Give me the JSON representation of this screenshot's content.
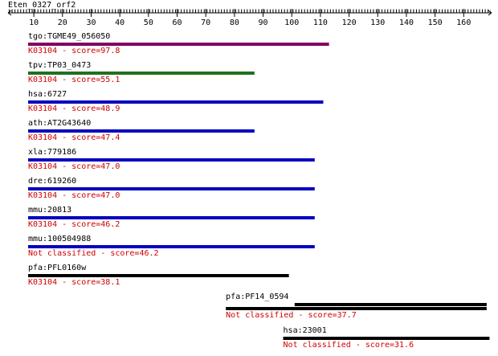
{
  "chart_data": {
    "type": "range",
    "title": "Eten_0327_orf2",
    "xlim": [
      1,
      170
    ],
    "xticks": [
      10,
      20,
      30,
      40,
      50,
      60,
      70,
      80,
      90,
      100,
      110,
      120,
      130,
      140,
      150,
      160
    ],
    "series": [
      {
        "name": "tgo:TGME49_056050",
        "note": "K03104 - score=97.8",
        "color": "#800060",
        "ranges": [
          [
            8,
            113
          ]
        ]
      },
      {
        "name": "tpv:TP03_0473",
        "note": "K03104 - score=55.1",
        "color": "#207020",
        "ranges": [
          [
            8,
            87
          ]
        ]
      },
      {
        "name": "hsa:6727",
        "note": "K03104 - score=48.9",
        "color": "#0000c0",
        "ranges": [
          [
            8,
            111
          ]
        ]
      },
      {
        "name": "ath:AT2G43640",
        "note": "K03104 - score=47.4",
        "color": "#0000c0",
        "ranges": [
          [
            8,
            87
          ]
        ]
      },
      {
        "name": "xla:779186",
        "note": "K03104 - score=47.0",
        "color": "#0000c0",
        "ranges": [
          [
            8,
            108
          ]
        ]
      },
      {
        "name": "dre:619260",
        "note": "K03104 - score=47.0",
        "color": "#0000c0",
        "ranges": [
          [
            8,
            108
          ]
        ]
      },
      {
        "name": "mmu:20813",
        "note": "K03104 - score=46.2",
        "color": "#0000c0",
        "ranges": [
          [
            8,
            108
          ]
        ]
      },
      {
        "name": "mmu:100504988",
        "note": "Not classified - score=46.2",
        "color": "#0000c0",
        "ranges": [
          [
            8,
            108
          ]
        ]
      },
      {
        "name": "pfa:PFL0160w",
        "note": "K03104 - score=38.1",
        "color": "#000000",
        "ranges": [
          [
            8,
            99
          ]
        ]
      },
      {
        "name": "pfa:PF14_0594",
        "note": "Not classified - score=37.7",
        "color": "#000000",
        "ranges": [
          [
            101,
            168
          ],
          [
            77,
            168
          ]
        ]
      },
      {
        "name": "hsa:23001",
        "note": "Not classified - score=31.6",
        "color": "#000000",
        "ranges": [
          [
            97,
            169
          ]
        ]
      }
    ]
  }
}
